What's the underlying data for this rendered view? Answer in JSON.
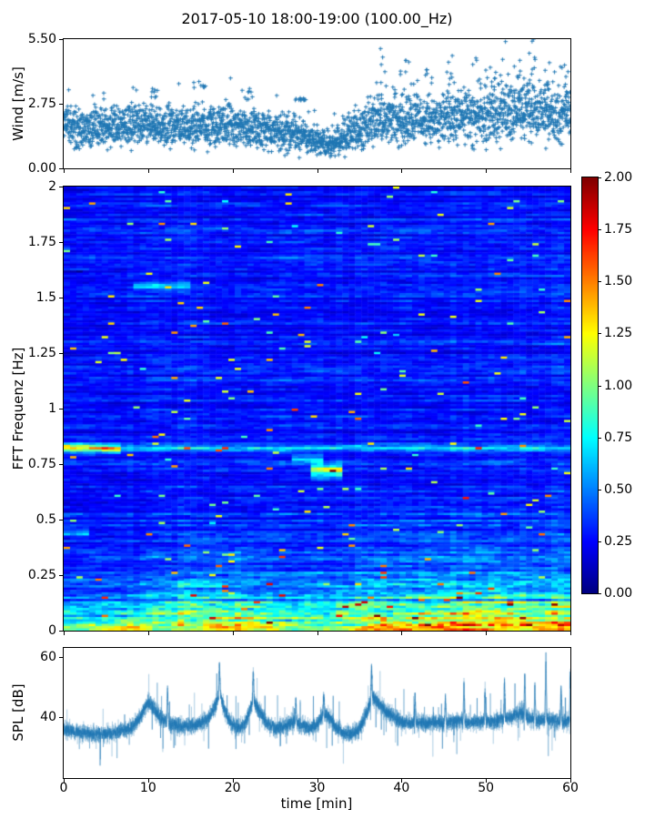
{
  "figure_title": "2017-05-10 18:00-19:00 (100.00_Hz)",
  "figure": {
    "background": "#ffffff",
    "text_color": "#000000",
    "accent_blue": "#1f77b4"
  },
  "colorbar": {
    "colormap": "jet",
    "clim": [
      0,
      2
    ],
    "ticks": [
      {
        "value": 2.0,
        "label": "2.00"
      },
      {
        "value": 1.75,
        "label": "1.75"
      },
      {
        "value": 1.5,
        "label": "1.50"
      },
      {
        "value": 1.25,
        "label": "1.25"
      },
      {
        "value": 1.0,
        "label": "1.00"
      },
      {
        "value": 0.75,
        "label": "0.75"
      },
      {
        "value": 0.5,
        "label": "0.50"
      },
      {
        "value": 0.25,
        "label": "0.25"
      },
      {
        "value": 0.0,
        "label": "0.00"
      }
    ]
  },
  "chart_data": [
    {
      "id": "wind",
      "type": "scatter",
      "ylabel": "Wind [m/s]",
      "xlim": [
        0,
        60
      ],
      "ylim": [
        0,
        5.5
      ],
      "yticks": [
        {
          "value": 5.5,
          "label": "5.50"
        },
        {
          "value": 2.75,
          "label": "2.75"
        },
        {
          "value": 0.0,
          "label": "0.00"
        }
      ],
      "xtick_values": [
        0,
        10,
        20,
        30,
        40,
        50,
        60
      ],
      "marker": "plus",
      "color": "#1f77b4",
      "n_points": 2900,
      "seed": 11,
      "mean_vs_time": [
        [
          0,
          1.95
        ],
        [
          3,
          1.75
        ],
        [
          6,
          1.8
        ],
        [
          9,
          1.9
        ],
        [
          12,
          1.8
        ],
        [
          15,
          1.75
        ],
        [
          18,
          1.85
        ],
        [
          21,
          1.8
        ],
        [
          24,
          1.65
        ],
        [
          27,
          1.55
        ],
        [
          30,
          1.15
        ],
        [
          32,
          1.05
        ],
        [
          34,
          1.5
        ],
        [
          36,
          1.9
        ],
        [
          38,
          2.15
        ],
        [
          40,
          2.0
        ],
        [
          42,
          2.2
        ],
        [
          44,
          2.1
        ],
        [
          46,
          2.25
        ],
        [
          48,
          2.15
        ],
        [
          50,
          2.3
        ],
        [
          52,
          2.45
        ],
        [
          54,
          2.35
        ],
        [
          56,
          2.3
        ],
        [
          58,
          2.35
        ],
        [
          60,
          2.3
        ]
      ],
      "spread_vs_time": [
        [
          0,
          0.5
        ],
        [
          20,
          0.5
        ],
        [
          28,
          0.45
        ],
        [
          31,
          0.33
        ],
        [
          34,
          0.5
        ],
        [
          38,
          0.62
        ],
        [
          45,
          0.58
        ],
        [
          50,
          0.68
        ],
        [
          55,
          0.7
        ],
        [
          60,
          0.65
        ]
      ],
      "outlier_clusters": [
        [
          10.5,
          3.4
        ],
        [
          16,
          3.7
        ],
        [
          22,
          3.4
        ],
        [
          28,
          3.0
        ],
        [
          37.5,
          5.1
        ],
        [
          40.5,
          4.6
        ],
        [
          43,
          4.2
        ],
        [
          46,
          4.8
        ],
        [
          48.8,
          4.7
        ],
        [
          50.5,
          4.3
        ],
        [
          52.3,
          5.4
        ],
        [
          54,
          4.6
        ],
        [
          55.6,
          5.5
        ],
        [
          57.5,
          4.5
        ],
        [
          59.3,
          4.4
        ]
      ]
    },
    {
      "id": "spectrogram",
      "type": "heatmap",
      "ylabel": "FFT Frequenz [Hz]",
      "xlim": [
        0,
        60
      ],
      "ylim": [
        0,
        2
      ],
      "clim": [
        0,
        2
      ],
      "colormap": "jet",
      "yticks": [
        {
          "value": 2.0,
          "label": "2"
        },
        {
          "value": 1.75,
          "label": "1.75"
        },
        {
          "value": 1.5,
          "label": "1.5"
        },
        {
          "value": 1.25,
          "label": "1.25"
        },
        {
          "value": 1.0,
          "label": "1"
        },
        {
          "value": 0.75,
          "label": "0.75"
        },
        {
          "value": 0.5,
          "label": "0.5"
        },
        {
          "value": 0.25,
          "label": "0.25"
        },
        {
          "value": 0.0,
          "label": "0"
        }
      ],
      "xtick_values": [
        0,
        10,
        20,
        30,
        40,
        50,
        60
      ],
      "n_time_bins": 80,
      "n_freq_bins": 196,
      "seed": 29,
      "base_level": 0.26,
      "low_freq_gain": 0.4,
      "low_activity_vs_time": [
        [
          0,
          0.1
        ],
        [
          6,
          0.15
        ],
        [
          10,
          0.25
        ],
        [
          14,
          0.45
        ],
        [
          18,
          0.5
        ],
        [
          22,
          0.45
        ],
        [
          26,
          0.25
        ],
        [
          30,
          0.3
        ],
        [
          33,
          0.35
        ],
        [
          36,
          0.55
        ],
        [
          40,
          0.5
        ],
        [
          44,
          0.55
        ],
        [
          48,
          0.6
        ],
        [
          52,
          0.6
        ],
        [
          56,
          0.55
        ],
        [
          60,
          0.6
        ]
      ],
      "bottom_band_amp_vs_time": [
        [
          0,
          0.75
        ],
        [
          3,
          0.7
        ],
        [
          5,
          0.85
        ],
        [
          8,
          0.9
        ],
        [
          11,
          0.6
        ],
        [
          14,
          0.75
        ],
        [
          18,
          0.9
        ],
        [
          21,
          1.0
        ],
        [
          24,
          0.9
        ],
        [
          27,
          0.65
        ],
        [
          30,
          0.7
        ],
        [
          33,
          0.75
        ],
        [
          36,
          1.0
        ],
        [
          39,
          0.95
        ],
        [
          42,
          0.9
        ],
        [
          45,
          1.0
        ],
        [
          48,
          1.0
        ],
        [
          51,
          0.95
        ],
        [
          54,
          0.9
        ],
        [
          57,
          0.95
        ],
        [
          60,
          1.0
        ]
      ],
      "bands": [
        {
          "f": 0.82,
          "fwidth": 0.012,
          "t0": 0,
          "t1": 6.5,
          "amp": 1.3
        },
        {
          "f": 0.82,
          "fwidth": 0.01,
          "t0": 6.5,
          "t1": 60,
          "amp": 0.5
        },
        {
          "f": 0.72,
          "fwidth": 0.02,
          "t0": 29,
          "t1": 33,
          "amp": 1.15
        },
        {
          "f": 0.77,
          "fwidth": 0.012,
          "t0": 27,
          "t1": 30.5,
          "amp": 0.55
        },
        {
          "f": 1.55,
          "fwidth": 0.012,
          "t0": 8,
          "t1": 15,
          "amp": 0.45
        },
        {
          "f": 0.44,
          "fwidth": 0.01,
          "t0": 0,
          "t1": 3,
          "amp": 0.5
        }
      ]
    },
    {
      "id": "spl",
      "type": "line",
      "ylabel": "SPL [dB]",
      "xlabel": "time [min]",
      "xlim": [
        0,
        60
      ],
      "ylim": [
        20,
        63
      ],
      "color": "#1f77b4",
      "seed": 47,
      "yticks": [
        {
          "value": 60,
          "label": "60"
        },
        {
          "value": 40,
          "label": "40"
        }
      ],
      "xticks": [
        {
          "value": 0,
          "label": "0"
        },
        {
          "value": 10,
          "label": "10"
        },
        {
          "value": 20,
          "label": "20"
        },
        {
          "value": 30,
          "label": "30"
        },
        {
          "value": 40,
          "label": "40"
        },
        {
          "value": 50,
          "label": "50"
        },
        {
          "value": 60,
          "label": "60"
        }
      ],
      "baseline_vs_time": [
        [
          0,
          36
        ],
        [
          1,
          35.5
        ],
        [
          2,
          35
        ],
        [
          4,
          34.5
        ],
        [
          6,
          35
        ],
        [
          8,
          36.5
        ],
        [
          9,
          40
        ],
        [
          10,
          45
        ],
        [
          10.7,
          43
        ],
        [
          11.5,
          40
        ],
        [
          12.5,
          38
        ],
        [
          14,
          37
        ],
        [
          15.5,
          37.5
        ],
        [
          17,
          39
        ],
        [
          18,
          44
        ],
        [
          18.5,
          48
        ],
        [
          19,
          43
        ],
        [
          19.8,
          38
        ],
        [
          20.5,
          36.5
        ],
        [
          21.5,
          38
        ],
        [
          22,
          42
        ],
        [
          22.5,
          46
        ],
        [
          23,
          43
        ],
        [
          24,
          38
        ],
        [
          25,
          36.5
        ],
        [
          26,
          37
        ],
        [
          27,
          38.5
        ],
        [
          28,
          37.5
        ],
        [
          29,
          36.5
        ],
        [
          30,
          37.5
        ],
        [
          30.7,
          41
        ],
        [
          31.3,
          41
        ],
        [
          32,
          37.5
        ],
        [
          33,
          35
        ],
        [
          34,
          34.5
        ],
        [
          35,
          36
        ],
        [
          36,
          42
        ],
        [
          36.5,
          47
        ],
        [
          37.2,
          45
        ],
        [
          38,
          42.5
        ],
        [
          39,
          40.5
        ],
        [
          40,
          38.5
        ],
        [
          41,
          38
        ],
        [
          42,
          38.5
        ],
        [
          43,
          38
        ],
        [
          44,
          38.5
        ],
        [
          45,
          38
        ],
        [
          46,
          38.5
        ],
        [
          47,
          39
        ],
        [
          48,
          38
        ],
        [
          49,
          38.5
        ],
        [
          50,
          39
        ],
        [
          51,
          38.5
        ],
        [
          52,
          39.5
        ],
        [
          53,
          40
        ],
        [
          54,
          41.5
        ],
        [
          55,
          40
        ],
        [
          56,
          39
        ],
        [
          57,
          39.5
        ],
        [
          58,
          39
        ],
        [
          59,
          38.5
        ],
        [
          60,
          39
        ]
      ],
      "noise_amp": 2.6,
      "spikes": [
        [
          12.3,
          50
        ],
        [
          18.45,
          58
        ],
        [
          22.45,
          56
        ],
        [
          27.5,
          46
        ],
        [
          30.8,
          47
        ],
        [
          36.45,
          57
        ],
        [
          41.6,
          48
        ],
        [
          45.2,
          47
        ],
        [
          47.4,
          51
        ],
        [
          49.9,
          49
        ],
        [
          52.2,
          52
        ],
        [
          54.6,
          55
        ],
        [
          55.8,
          50
        ],
        [
          57.1,
          61
        ],
        [
          58.9,
          50
        ],
        [
          60,
          54
        ]
      ]
    }
  ]
}
